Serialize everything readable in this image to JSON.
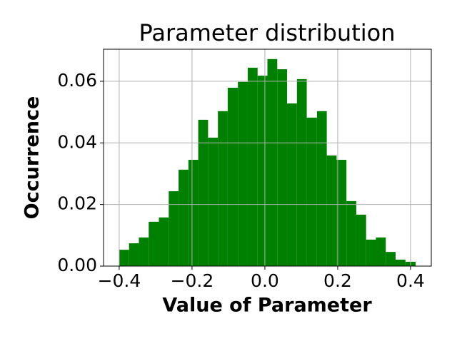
{
  "chart_data": {
    "type": "histogram",
    "title": "Parameter distribution",
    "x_label": "Value of Parameter",
    "y_label": "Occurrence",
    "color": "#008000",
    "grid": true,
    "bins": [
      -0.4,
      -0.373,
      -0.346,
      -0.319,
      -0.291,
      -0.264,
      -0.237,
      -0.21,
      -0.183,
      -0.156,
      -0.129,
      -0.102,
      -0.074,
      -0.047,
      -0.02,
      0.007,
      0.034,
      0.061,
      0.088,
      0.115,
      0.143,
      0.17,
      0.197,
      0.224,
      0.251,
      0.278,
      0.305,
      0.332,
      0.359,
      0.386,
      0.414
    ],
    "values": [
      0.0053,
      0.0074,
      0.0093,
      0.0144,
      0.0158,
      0.0243,
      0.0313,
      0.0345,
      0.0475,
      0.0417,
      0.0503,
      0.0579,
      0.0598,
      0.0644,
      0.0618,
      0.0672,
      0.0639,
      0.0528,
      0.0607,
      0.0482,
      0.0503,
      0.0359,
      0.0345,
      0.0211,
      0.0167,
      0.0086,
      0.0093,
      0.0046,
      0.0021,
      0.0014
    ],
    "xlim": [
      -0.443,
      0.457
    ],
    "ylim": [
      0,
      0.0704
    ],
    "xticks": [
      {
        "value": -0.4,
        "label": "−0.4"
      },
      {
        "value": -0.2,
        "label": "−0.2"
      },
      {
        "value": 0,
        "label": "0.0"
      },
      {
        "value": 0.2,
        "label": "0.2"
      },
      {
        "value": 0.4,
        "label": "0.4"
      }
    ],
    "yticks": [
      {
        "value": 0,
        "label": "0.00"
      },
      {
        "value": 0.02,
        "label": "0.02"
      },
      {
        "value": 0.04,
        "label": "0.04"
      },
      {
        "value": 0.06,
        "label": "0.06"
      }
    ]
  }
}
